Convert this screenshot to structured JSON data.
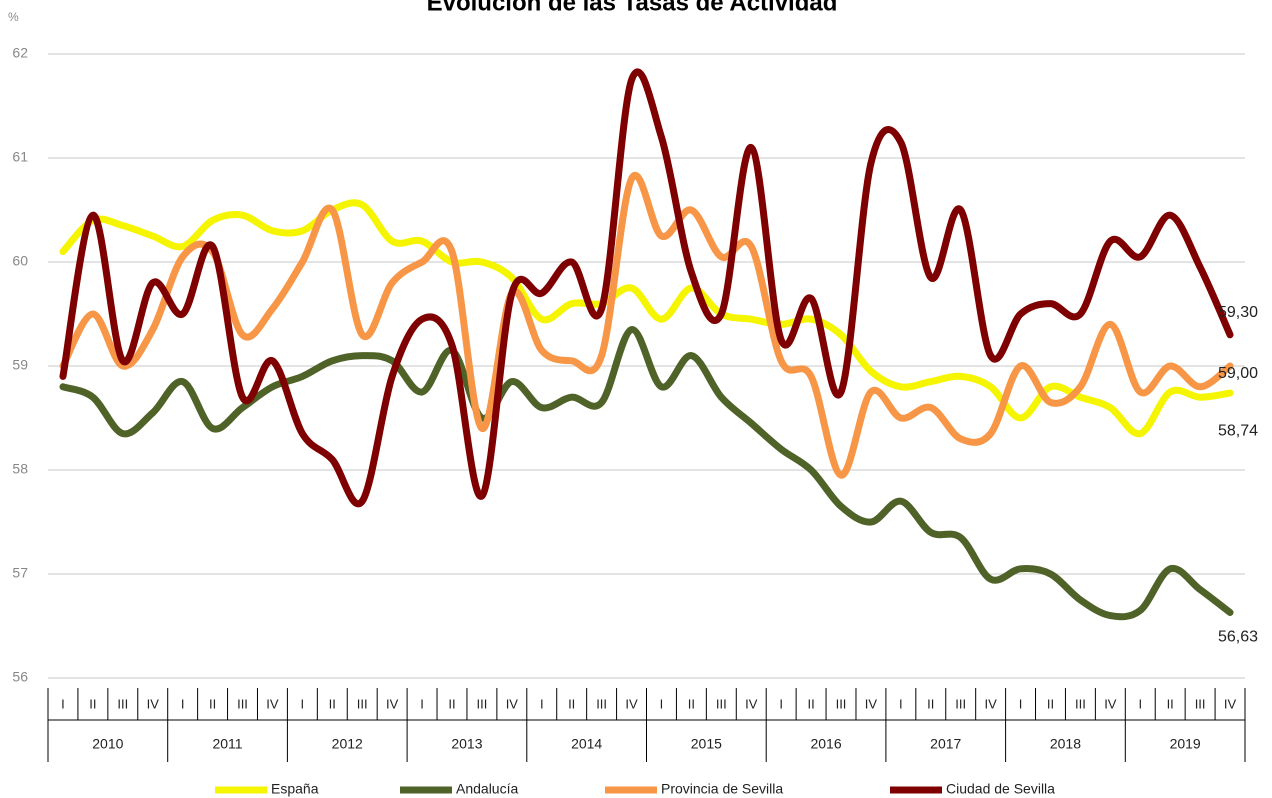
{
  "chart_data": {
    "type": "line",
    "title": "Evolución de las Tasas de Actividad",
    "y_unit": "%",
    "categories": [
      "I",
      "II",
      "III",
      "IV",
      "I",
      "II",
      "III",
      "IV",
      "I",
      "II",
      "III",
      "IV",
      "I",
      "II",
      "III",
      "IV",
      "I",
      "II",
      "III",
      "IV",
      "I",
      "II",
      "III",
      "IV",
      "I",
      "II",
      "III",
      "IV",
      "I",
      "II",
      "III",
      "IV",
      "I",
      "II",
      "III",
      "IV",
      "I",
      "II",
      "III",
      "IV"
    ],
    "years": [
      "2010",
      "2011",
      "2012",
      "2013",
      "2014",
      "2015",
      "2016",
      "2017",
      "2018",
      "2019"
    ],
    "ylim": [
      56,
      62
    ],
    "yticks": [
      56,
      57,
      58,
      59,
      60,
      61,
      62
    ],
    "grid": true,
    "legend": "bottom",
    "series": [
      {
        "name": "España",
        "color": "#f5f500",
        "values": [
          60.1,
          60.4,
          60.35,
          60.25,
          60.15,
          60.4,
          60.45,
          60.3,
          60.3,
          60.5,
          60.55,
          60.2,
          60.2,
          60.0,
          60.0,
          59.85,
          59.45,
          59.6,
          59.6,
          59.75,
          59.45,
          59.75,
          59.5,
          59.45,
          59.4,
          59.45,
          59.3,
          58.95,
          58.8,
          58.85,
          58.9,
          58.8,
          58.5,
          58.8,
          58.7,
          58.6,
          58.35,
          58.75,
          58.7,
          58.74
        ],
        "value_labels": [
          null,
          null,
          null,
          null,
          null,
          null,
          null,
          null,
          null,
          null,
          null,
          null,
          null,
          null,
          null,
          null,
          null,
          null,
          null,
          null,
          null,
          null,
          null,
          null,
          null,
          null,
          null,
          null,
          null,
          null,
          null,
          null,
          null,
          null,
          null,
          null,
          null,
          null,
          null,
          "58,74"
        ]
      },
      {
        "name": "Andalucía",
        "color": "#4f6228",
        "values": [
          58.8,
          58.7,
          58.35,
          58.55,
          58.85,
          58.4,
          58.6,
          58.8,
          58.9,
          59.05,
          59.1,
          59.05,
          58.75,
          59.15,
          58.5,
          58.85,
          58.6,
          58.7,
          58.65,
          59.35,
          58.8,
          59.1,
          58.7,
          58.45,
          58.2,
          58.0,
          57.65,
          57.5,
          57.7,
          57.4,
          57.35,
          56.95,
          57.05,
          57.0,
          56.75,
          56.6,
          56.65,
          57.05,
          56.85,
          56.63
        ],
        "value_labels": [
          null,
          null,
          null,
          null,
          null,
          null,
          null,
          null,
          null,
          null,
          null,
          null,
          null,
          null,
          null,
          null,
          null,
          null,
          null,
          null,
          null,
          null,
          null,
          null,
          null,
          null,
          null,
          null,
          null,
          null,
          null,
          null,
          null,
          null,
          null,
          null,
          null,
          null,
          null,
          "56,63"
        ]
      },
      {
        "name": "Provincia de Sevilla",
        "color": "#f79646",
        "values": [
          59.0,
          59.5,
          59.0,
          59.35,
          60.05,
          60.1,
          59.3,
          59.55,
          60.0,
          60.5,
          59.3,
          59.8,
          60.0,
          60.1,
          58.4,
          59.7,
          59.15,
          59.05,
          59.1,
          60.8,
          60.25,
          60.5,
          60.05,
          60.15,
          59.05,
          58.9,
          57.95,
          58.75,
          58.5,
          58.6,
          58.3,
          58.35,
          59.0,
          58.65,
          58.8,
          59.4,
          58.75,
          59.0,
          58.8,
          59.0
        ],
        "value_labels": [
          null,
          null,
          null,
          null,
          null,
          null,
          null,
          null,
          null,
          null,
          null,
          null,
          null,
          null,
          null,
          null,
          null,
          null,
          null,
          null,
          null,
          null,
          null,
          null,
          null,
          null,
          null,
          null,
          null,
          null,
          null,
          null,
          null,
          null,
          null,
          null,
          null,
          null,
          null,
          "59,00"
        ]
      },
      {
        "name": "Ciudad de Sevilla",
        "color": "#7f0000",
        "values": [
          58.9,
          60.45,
          59.05,
          59.8,
          59.5,
          60.15,
          58.7,
          59.05,
          58.35,
          58.1,
          57.7,
          58.9,
          59.45,
          59.2,
          57.75,
          59.7,
          59.7,
          60.0,
          59.55,
          61.75,
          61.2,
          59.9,
          59.5,
          61.1,
          59.25,
          59.65,
          58.75,
          60.95,
          61.15,
          59.85,
          60.5,
          59.1,
          59.5,
          59.6,
          59.5,
          60.2,
          60.05,
          60.45,
          59.95,
          59.3
        ],
        "value_labels": [
          null,
          null,
          null,
          null,
          null,
          null,
          null,
          null,
          null,
          null,
          null,
          null,
          null,
          null,
          null,
          null,
          null,
          null,
          null,
          null,
          null,
          null,
          null,
          null,
          null,
          null,
          null,
          null,
          null,
          null,
          null,
          null,
          null,
          null,
          null,
          null,
          null,
          null,
          null,
          "59,30"
        ]
      }
    ]
  }
}
